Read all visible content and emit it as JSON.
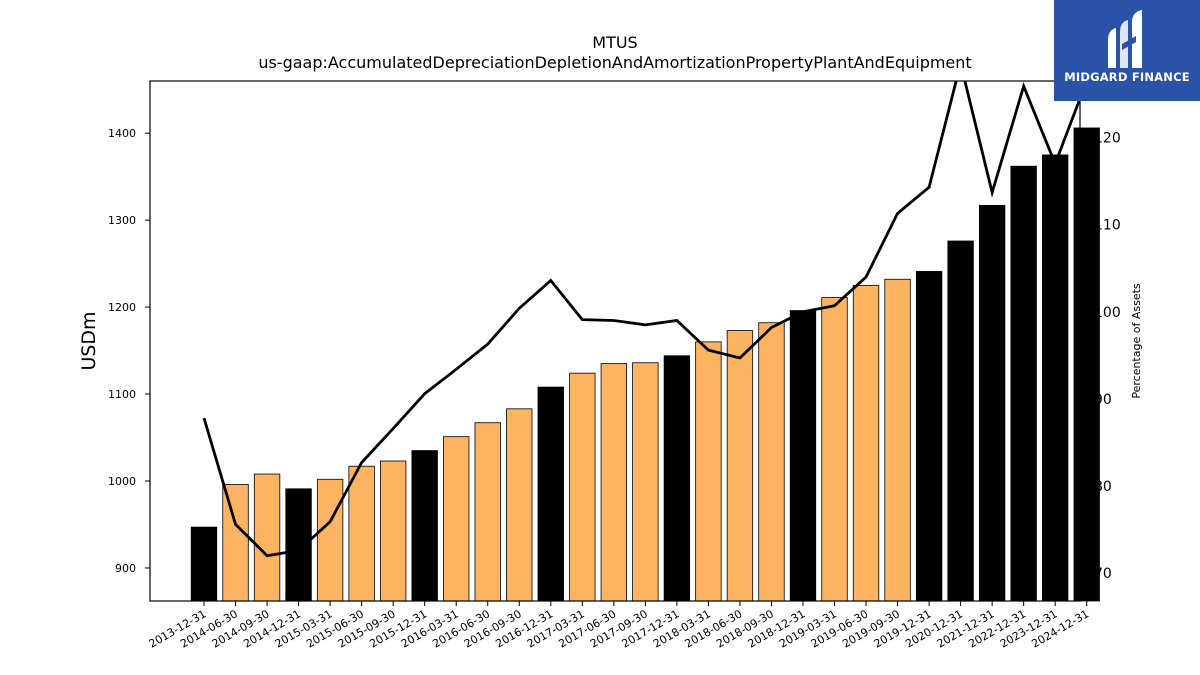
{
  "chart_data": {
    "type": "bar",
    "title": "MTUS",
    "subtitle": "us-gaap:AccumulatedDepreciationDepletionAndAmortizationPropertyPlantAndEquipment",
    "ylabel": "USDm",
    "y2label": "Percentage of Assets",
    "ylim": [
      862,
      1460
    ],
    "y2lim": [
      66.8,
      126.5
    ],
    "yticks": [
      900,
      1000,
      1100,
      1200,
      1300,
      1400
    ],
    "y2ticks": [
      70,
      80,
      90,
      100,
      110,
      120
    ],
    "grid": false,
    "categories": [
      "2013-12-31",
      "2014-06-30",
      "2014-09-30",
      "2014-12-31",
      "2015-03-31",
      "2015-06-30",
      "2015-09-30",
      "2015-12-31",
      "2016-03-31",
      "2016-06-30",
      "2016-09-30",
      "2016-12-31",
      "2017-03-31",
      "2017-06-30",
      "2017-09-30",
      "2017-12-31",
      "2018-03-31",
      "2018-06-30",
      "2018-09-30",
      "2018-12-31",
      "2019-03-31",
      "2019-06-30",
      "2019-09-30",
      "2019-12-31",
      "2020-12-31",
      "2021-12-31",
      "2022-12-31",
      "2023-12-31",
      "2024-12-31"
    ],
    "series": [
      {
        "kind": "bar",
        "values": [
          947,
          996,
          1008,
          991,
          1002,
          1017,
          1023,
          1035,
          1051,
          1067,
          1083,
          1108,
          1124,
          1135,
          1136,
          1144,
          1160,
          1173,
          1182,
          1196,
          1211,
          1225,
          1232,
          1241,
          1276,
          1317,
          1362,
          1375,
          1406
        ],
        "annual": [
          true,
          false,
          false,
          true,
          false,
          false,
          false,
          true,
          false,
          false,
          false,
          true,
          false,
          false,
          false,
          true,
          false,
          false,
          false,
          true,
          false,
          false,
          false,
          true,
          true,
          true,
          true,
          true,
          true
        ]
      },
      {
        "kind": "line",
        "axis": "right",
        "values": [
          87.8,
          75.6,
          72.0,
          72.6,
          75.9,
          82.7,
          86.6,
          90.6,
          93.4,
          96.3,
          100.4,
          103.6,
          99.1,
          99.0,
          98.5,
          99.0,
          95.6,
          94.7,
          98.2,
          100.0,
          100.7,
          104.0,
          111.3,
          114.3,
          128.5,
          113.7,
          125.9,
          117.0,
          126.5
        ]
      }
    ],
    "colors": {
      "annual": "#000000",
      "quarterly": "#fdb462",
      "line": "#000000"
    }
  },
  "logo": {
    "text": "MIDGARD FINANCE",
    "bg": "#2a52a7"
  }
}
